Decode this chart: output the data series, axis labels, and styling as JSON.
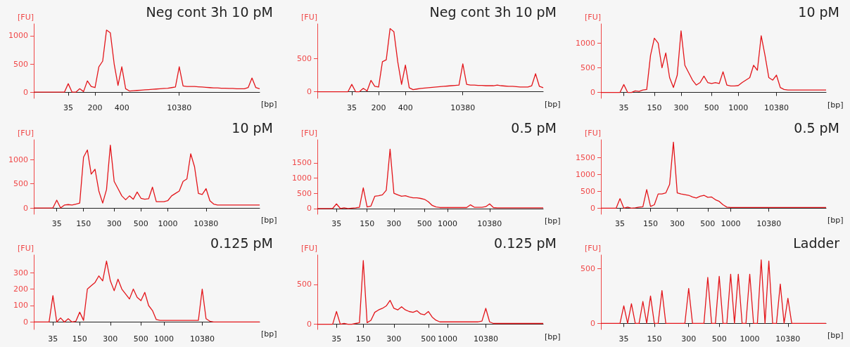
{
  "chart_data": [
    {
      "type": "line",
      "title": "Neg cont 3h 10 pM",
      "xlabel": "[bp]",
      "ylabel": "[FU]",
      "marker": "none",
      "ylim": [
        -110,
        1210
      ],
      "yticks": [
        0,
        500,
        1000
      ],
      "categories": [
        null,
        null,
        null,
        null,
        null,
        null,
        null,
        null,
        null,
        "35",
        null,
        null,
        null,
        null,
        null,
        null,
        "200",
        null,
        null,
        null,
        null,
        null,
        null,
        "400",
        null,
        null,
        null,
        null,
        null,
        null,
        null,
        null,
        null,
        null,
        null,
        null,
        null,
        null,
        "10380",
        null,
        null,
        null,
        null,
        null,
        null,
        null,
        null,
        null,
        null,
        null,
        null,
        null,
        null,
        null,
        null,
        null,
        null,
        null,
        null,
        null
      ],
      "series": [
        {
          "color": "#e3151a",
          "values": [
            0,
            0,
            0,
            0,
            0,
            0,
            0,
            0,
            0,
            150,
            0,
            0,
            60,
            10,
            200,
            100,
            80,
            450,
            550,
            1100,
            1050,
            500,
            120,
            450,
            60,
            20,
            25,
            30,
            35,
            40,
            45,
            50,
            55,
            60,
            65,
            70,
            80,
            90,
            450,
            110,
            100,
            100,
            100,
            95,
            90,
            85,
            80,
            75,
            75,
            70,
            70,
            65,
            65,
            60,
            60,
            60,
            80,
            250,
            80,
            60
          ]
        }
      ]
    },
    {
      "type": "line",
      "title": "Neg cont 3h 10 pM",
      "xlabel": "[bp]",
      "ylabel": "[FU]",
      "marker": "none",
      "ylim": [
        -100,
        1020
      ],
      "yticks": [
        0,
        500
      ],
      "categories": [
        null,
        null,
        null,
        null,
        null,
        null,
        null,
        null,
        null,
        "35",
        null,
        null,
        null,
        null,
        null,
        null,
        "200",
        null,
        null,
        null,
        null,
        null,
        null,
        "400",
        null,
        null,
        null,
        null,
        null,
        null,
        null,
        null,
        null,
        null,
        null,
        null,
        null,
        null,
        "10380",
        null,
        null,
        null,
        null,
        null,
        null,
        null,
        null,
        null,
        null,
        null,
        null,
        null,
        null,
        null,
        null,
        null,
        null,
        null,
        null,
        null
      ],
      "series": [
        {
          "color": "#e3151a",
          "values": [
            0,
            0,
            0,
            0,
            0,
            0,
            0,
            0,
            0,
            110,
            0,
            0,
            50,
            10,
            170,
            80,
            70,
            450,
            480,
            950,
            900,
            450,
            110,
            400,
            60,
            30,
            40,
            50,
            55,
            60,
            65,
            70,
            75,
            80,
            85,
            90,
            95,
            100,
            420,
            110,
            100,
            100,
            95,
            95,
            90,
            90,
            90,
            100,
            90,
            85,
            80,
            80,
            75,
            70,
            70,
            70,
            90,
            270,
            80,
            60
          ]
        }
      ]
    },
    {
      "type": "line",
      "title": "10 pM",
      "xlabel": "[bp]",
      "ylabel": "[FU]",
      "marker": "none",
      "ylim": [
        -120,
        1390
      ],
      "yticks": [
        0,
        500,
        1000
      ],
      "categories": [
        null,
        null,
        null,
        null,
        null,
        null,
        "35",
        null,
        null,
        null,
        null,
        null,
        null,
        null,
        "150",
        null,
        null,
        null,
        null,
        null,
        null,
        "300",
        null,
        null,
        null,
        null,
        null,
        null,
        null,
        "500",
        null,
        null,
        null,
        null,
        null,
        null,
        "1000",
        null,
        null,
        null,
        null,
        null,
        null,
        null,
        null,
        null,
        "10380",
        null,
        null,
        null,
        null,
        null,
        null,
        null,
        null,
        null,
        null,
        null,
        null,
        null
      ],
      "series": [
        {
          "color": "#e3151a",
          "values": [
            0,
            0,
            0,
            0,
            0,
            0,
            160,
            0,
            0,
            30,
            20,
            50,
            60,
            750,
            1100,
            1000,
            500,
            800,
            300,
            100,
            350,
            1250,
            550,
            400,
            250,
            150,
            200,
            330,
            200,
            180,
            200,
            180,
            420,
            150,
            130,
            130,
            140,
            200,
            250,
            300,
            550,
            450,
            1150,
            750,
            300,
            250,
            350,
            100,
            60,
            50,
            50,
            50,
            50,
            50,
            50,
            50,
            50,
            50,
            50,
            50
          ]
        }
      ]
    },
    {
      "type": "line",
      "title": "10 pM",
      "xlabel": "[bp]",
      "ylabel": "[FU]",
      "marker": "none",
      "ylim": [
        -130,
        1410
      ],
      "yticks": [
        0,
        500,
        1000
      ],
      "categories": [
        null,
        null,
        null,
        null,
        null,
        null,
        "35",
        null,
        null,
        null,
        null,
        null,
        null,
        "150",
        null,
        null,
        null,
        null,
        null,
        null,
        null,
        "300",
        null,
        null,
        null,
        null,
        null,
        null,
        "500",
        null,
        null,
        null,
        null,
        null,
        null,
        "1000",
        null,
        null,
        null,
        null,
        null,
        null,
        null,
        null,
        null,
        "10380",
        null,
        null,
        null,
        null,
        null,
        null,
        null,
        null,
        null,
        null,
        null,
        null,
        null,
        null
      ],
      "series": [
        {
          "color": "#e3151a",
          "values": [
            0,
            0,
            0,
            0,
            0,
            0,
            160,
            0,
            60,
            70,
            60,
            80,
            100,
            1050,
            1200,
            700,
            800,
            350,
            100,
            380,
            1300,
            550,
            400,
            250,
            170,
            250,
            180,
            330,
            200,
            180,
            190,
            430,
            130,
            130,
            130,
            150,
            250,
            300,
            350,
            550,
            600,
            1120,
            850,
            300,
            280,
            400,
            150,
            80,
            60,
            60,
            60,
            60,
            60,
            60,
            60,
            60,
            60,
            60,
            60,
            60
          ]
        }
      ]
    },
    {
      "type": "line",
      "title": "0.5 pM",
      "xlabel": "[bp]",
      "ylabel": "[FU]",
      "marker": "none",
      "ylim": [
        -190,
        2260
      ],
      "yticks": [
        0,
        500,
        1000,
        1500
      ],
      "categories": [
        null,
        null,
        null,
        null,
        null,
        "35",
        null,
        null,
        null,
        null,
        null,
        null,
        null,
        "150",
        null,
        null,
        null,
        null,
        null,
        null,
        "300",
        null,
        null,
        null,
        null,
        null,
        null,
        null,
        "500",
        null,
        null,
        null,
        null,
        null,
        "1000",
        null,
        null,
        null,
        null,
        null,
        null,
        null,
        null,
        null,
        null,
        "10380",
        null,
        null,
        null,
        null,
        null,
        null,
        null,
        null,
        null,
        null,
        null,
        null,
        null,
        null
      ],
      "series": [
        {
          "color": "#e3151a",
          "values": [
            0,
            0,
            0,
            0,
            0,
            150,
            0,
            20,
            0,
            10,
            20,
            40,
            680,
            50,
            80,
            400,
            420,
            450,
            600,
            1950,
            500,
            450,
            400,
            420,
            380,
            350,
            350,
            330,
            300,
            220,
            100,
            50,
            30,
            30,
            30,
            30,
            30,
            30,
            30,
            30,
            120,
            40,
            40,
            40,
            60,
            150,
            30,
            20,
            20,
            20,
            20,
            20,
            20,
            20,
            20,
            20,
            20,
            20,
            20,
            20
          ]
        }
      ]
    },
    {
      "type": "line",
      "title": "0.5 pM",
      "xlabel": "[bp]",
      "ylabel": "[FU]",
      "marker": "none",
      "ylim": [
        -180,
        2020
      ],
      "yticks": [
        0,
        500,
        1000,
        1500
      ],
      "categories": [
        null,
        null,
        null,
        null,
        null,
        "35",
        null,
        null,
        null,
        null,
        null,
        null,
        null,
        "150",
        null,
        null,
        null,
        null,
        null,
        null,
        "300",
        null,
        null,
        null,
        null,
        null,
        null,
        null,
        "500",
        null,
        null,
        null,
        null,
        null,
        "1000",
        null,
        null,
        null,
        null,
        null,
        null,
        null,
        null,
        null,
        "10380",
        null,
        null,
        null,
        null,
        null,
        null,
        null,
        null,
        null,
        null,
        null,
        null,
        null,
        null,
        null
      ],
      "series": [
        {
          "color": "#e3151a",
          "values": [
            0,
            0,
            0,
            0,
            0,
            280,
            0,
            30,
            0,
            10,
            30,
            40,
            550,
            50,
            100,
            420,
            420,
            450,
            700,
            1950,
            450,
            420,
            400,
            380,
            330,
            300,
            350,
            380,
            320,
            330,
            250,
            200,
            100,
            30,
            20,
            20,
            20,
            20,
            20,
            20,
            20,
            20,
            20,
            20,
            20,
            20,
            20,
            20,
            20,
            20,
            20,
            20,
            20,
            20,
            20,
            20,
            20,
            20,
            20,
            20
          ]
        }
      ]
    },
    {
      "type": "line",
      "title": "0.125 pM",
      "xlabel": "[bp]",
      "ylabel": "[FU]",
      "marker": "none",
      "ylim": [
        -45,
        407
      ],
      "yticks": [
        0,
        100,
        200,
        300
      ],
      "categories": [
        null,
        null,
        null,
        null,
        null,
        "35",
        null,
        null,
        null,
        null,
        null,
        null,
        "150",
        null,
        null,
        null,
        null,
        null,
        null,
        null,
        "300",
        null,
        null,
        null,
        null,
        null,
        null,
        null,
        "500",
        null,
        null,
        null,
        null,
        null,
        "1000",
        null,
        null,
        null,
        null,
        null,
        null,
        null,
        null,
        null,
        "10380",
        null,
        null,
        null,
        null,
        null,
        null,
        null,
        null,
        null,
        null,
        null,
        null,
        null,
        null,
        null
      ],
      "series": [
        {
          "color": "#e3151a",
          "values": [
            0,
            0,
            0,
            0,
            0,
            160,
            0,
            25,
            0,
            20,
            0,
            5,
            60,
            10,
            200,
            220,
            240,
            280,
            250,
            370,
            250,
            190,
            260,
            200,
            170,
            140,
            200,
            150,
            130,
            180,
            100,
            70,
            15,
            10,
            10,
            10,
            10,
            10,
            10,
            10,
            10,
            10,
            10,
            10,
            200,
            20,
            5,
            0,
            0,
            0,
            0,
            0,
            0,
            0,
            0,
            0,
            0,
            0,
            0,
            0
          ]
        }
      ]
    },
    {
      "type": "line",
      "title": "0.125 pM",
      "xlabel": "[bp]",
      "ylabel": "[FU]",
      "marker": "none",
      "ylim": [
        -65,
        870
      ],
      "yticks": [
        0,
        500
      ],
      "categories": [
        null,
        null,
        null,
        null,
        null,
        "35",
        null,
        null,
        null,
        null,
        null,
        null,
        "150",
        null,
        null,
        null,
        null,
        null,
        null,
        null,
        "300",
        null,
        null,
        null,
        null,
        null,
        null,
        null,
        null,
        "500",
        null,
        null,
        null,
        null,
        "1000",
        null,
        null,
        null,
        null,
        null,
        null,
        null,
        null,
        null,
        "10380",
        null,
        null,
        null,
        null,
        null,
        null,
        null,
        null,
        null,
        null,
        null,
        null,
        null,
        null,
        null
      ],
      "series": [
        {
          "color": "#e3151a",
          "values": [
            0,
            0,
            0,
            0,
            0,
            160,
            0,
            10,
            0,
            0,
            10,
            20,
            800,
            20,
            50,
            150,
            180,
            200,
            230,
            300,
            200,
            180,
            220,
            180,
            160,
            150,
            170,
            130,
            120,
            160,
            90,
            50,
            30,
            30,
            30,
            30,
            30,
            30,
            30,
            30,
            30,
            30,
            30,
            40,
            200,
            30,
            10,
            10,
            10,
            10,
            10,
            10,
            10,
            10,
            10,
            10,
            10,
            10,
            10,
            10
          ]
        }
      ]
    },
    {
      "type": "line",
      "title": "Ladder",
      "xlabel": "[bp]",
      "ylabel": "[FU]",
      "marker": "none",
      "ylim": [
        -55,
        625
      ],
      "yticks": [
        0,
        500
      ],
      "categories": [
        null,
        null,
        null,
        null,
        null,
        null,
        "35",
        null,
        null,
        null,
        null,
        null,
        null,
        null,
        "150",
        null,
        null,
        null,
        null,
        null,
        null,
        null,
        null,
        "300",
        null,
        null,
        null,
        null,
        null,
        null,
        null,
        "500",
        null,
        null,
        null,
        null,
        null,
        null,
        null,
        "1000",
        null,
        null,
        null,
        null,
        null,
        null,
        null,
        null,
        null,
        "10380",
        null,
        null,
        null,
        null,
        null,
        null,
        null,
        null,
        null,
        null
      ],
      "series": [
        {
          "color": "#e3151a",
          "values": [
            0,
            0,
            0,
            0,
            0,
            0,
            160,
            0,
            180,
            0,
            0,
            200,
            0,
            250,
            0,
            0,
            300,
            0,
            0,
            0,
            0,
            0,
            0,
            320,
            0,
            0,
            0,
            0,
            420,
            0,
            0,
            430,
            0,
            0,
            450,
            0,
            450,
            0,
            0,
            450,
            0,
            0,
            580,
            0,
            570,
            0,
            0,
            360,
            0,
            230,
            0,
            0,
            0,
            0,
            0,
            0,
            0,
            0,
            0,
            0
          ]
        }
      ]
    }
  ]
}
